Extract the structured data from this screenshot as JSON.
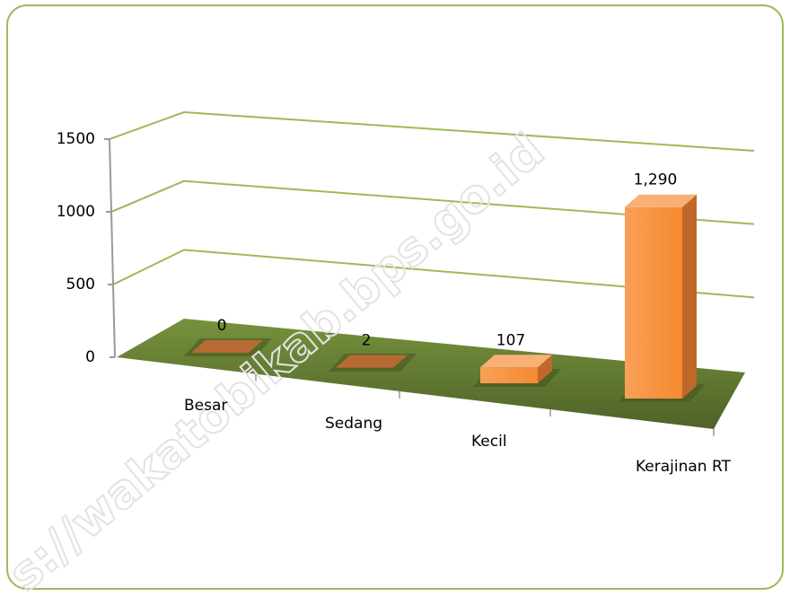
{
  "chart_data": {
    "type": "bar3d",
    "categories": [
      "Besar",
      "Sedang",
      "Kecil",
      "Kerajinan RT"
    ],
    "values": [
      0,
      2,
      107,
      1290
    ],
    "value_labels": [
      "0",
      "2",
      "107",
      "1,290"
    ],
    "color": "#f79646",
    "ylim": [
      0,
      1500
    ],
    "yticks": [
      0,
      500,
      1000,
      1500
    ],
    "grid": true,
    "watermark": "s://wakatobikab.bps.go.id"
  }
}
